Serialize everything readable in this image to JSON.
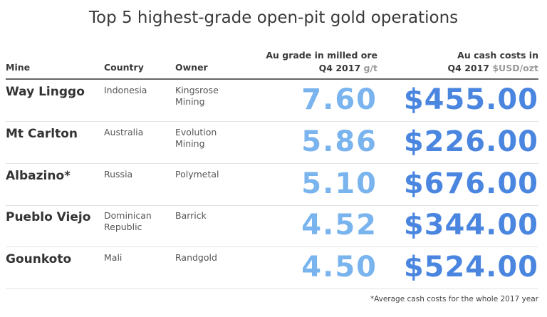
{
  "chart_data": {
    "type": "table",
    "title": "Top 5 highest-grade open-pit gold operations",
    "columns": {
      "mine": "Mine",
      "country": "Country",
      "owner": "Owner",
      "grade_line1": "Au grade in milled ore",
      "grade_line2": "Q4 2017",
      "grade_unit": "g/t",
      "cost_line1": "Au cash costs in",
      "cost_line2": "Q4 2017",
      "cost_unit": "$USD/ozt"
    },
    "rows": [
      {
        "mine": "Way Linggo",
        "country": "Indonesia",
        "owner": "Kingsrose Mining",
        "grade": "7.60",
        "cost": "$455.00"
      },
      {
        "mine": "Mt Carlton",
        "country": "Australia",
        "owner": "Evolution Mining",
        "grade": "5.86",
        "cost": "$226.00"
      },
      {
        "mine": "Albazino*",
        "country": "Russia",
        "owner": "Polymetal",
        "grade": "5.10",
        "cost": "$676.00"
      },
      {
        "mine": "Pueblo Viejo",
        "country": "Dominican Republic",
        "owner": "Barrick",
        "grade": "4.52",
        "cost": "$344.00"
      },
      {
        "mine": "Gounkoto",
        "country": "Mali",
        "owner": "Randgold",
        "grade": "4.50",
        "cost": "$524.00"
      }
    ],
    "footnote": "*Average cash costs for the whole 2017 year",
    "colors": {
      "grade": "#7ab4ee",
      "cost": "#4a86e0"
    }
  }
}
